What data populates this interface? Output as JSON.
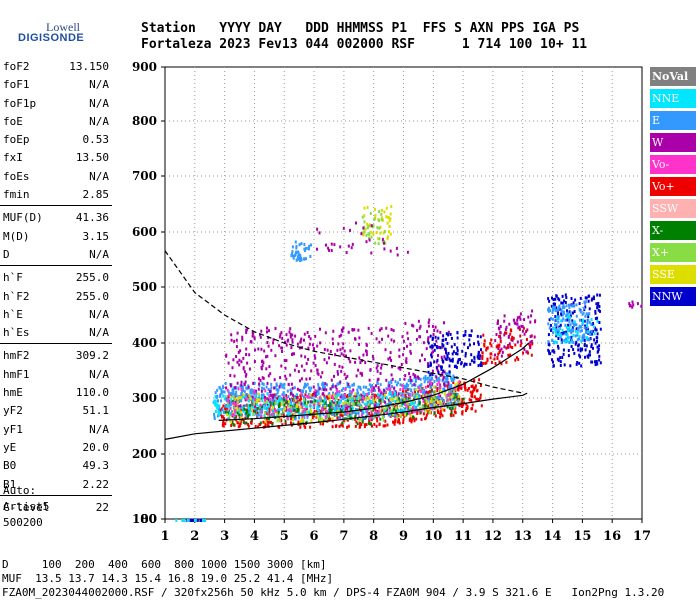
{
  "logo": {
    "line1": "Lowell",
    "line2": "DIGISONDE"
  },
  "header": {
    "row1": "Station   YYYY DAY   DDD HHMMSS P1  FFS S AXN PPS IGA PS",
    "row2": "Fortaleza 2023 Fev13 044 002000 RSF      1 714 100 10+ 11"
  },
  "params": {
    "group1": [
      {
        "name": "foF2",
        "value": "13.150"
      },
      {
        "name": "foF1",
        "value": "N/A"
      },
      {
        "name": "foF1p",
        "value": "N/A"
      },
      {
        "name": "foE",
        "value": "N/A"
      },
      {
        "name": "foEp",
        "value": "0.53"
      },
      {
        "name": "fxI",
        "value": "13.50"
      },
      {
        "name": "foEs",
        "value": "N/A"
      },
      {
        "name": "fmin",
        "value": "2.85"
      }
    ],
    "group2": [
      {
        "name": "MUF(D)",
        "value": "41.36"
      },
      {
        "name": "M(D)",
        "value": "3.15"
      },
      {
        "name": "D",
        "value": "N/A"
      }
    ],
    "group3": [
      {
        "name": "h`F",
        "value": "255.0"
      },
      {
        "name": "h`F2",
        "value": "255.0"
      },
      {
        "name": "h`E",
        "value": "N/A"
      },
      {
        "name": "h`Es",
        "value": "N/A"
      }
    ],
    "group4": [
      {
        "name": "hmF2",
        "value": "309.2"
      },
      {
        "name": "hmF1",
        "value": "N/A"
      },
      {
        "name": "hmE",
        "value": "110.0"
      },
      {
        "name": "yF2",
        "value": "51.1"
      },
      {
        "name": "yF1",
        "value": "N/A"
      },
      {
        "name": "yE",
        "value": "20.0"
      },
      {
        "name": "B0",
        "value": "49.3"
      },
      {
        "name": "B1",
        "value": "2.22"
      }
    ],
    "group5": [
      {
        "name": "C-level",
        "value": "22"
      }
    ]
  },
  "auto": {
    "line1": "Auto:",
    "line2": "Artist5",
    "line3": "500200"
  },
  "legend": [
    {
      "label": "NoVal",
      "color": "#808080"
    },
    {
      "label": "NNE",
      "color": "#00e6ff"
    },
    {
      "label": "E",
      "color": "#3399ff"
    },
    {
      "label": "W",
      "color": "#aa00aa"
    },
    {
      "label": "Vo-",
      "color": "#ff33cc"
    },
    {
      "label": "Vo+",
      "color": "#ee0000"
    },
    {
      "label": "SSW",
      "color": "#ffb0b0"
    },
    {
      "label": "X-",
      "color": "#008000"
    },
    {
      "label": "X+",
      "color": "#88dd44"
    },
    {
      "label": "SSE",
      "color": "#dddd00"
    },
    {
      "label": "NNW",
      "color": "#0000cc"
    }
  ],
  "footer": {
    "line1": "D     100  200  400  600  800 1000 1500 3000 [km]",
    "line2": "MUF  13.5 13.7 14.3 15.4 16.8 19.0 25.2 41.4 [MHz]",
    "line3": "FZA0M_2023044002000.RSF / 320fx256h 50 kHz 5.0 km / DPS-4 FZA0M 904 / 3.9 S 321.6 E   Ion2Png 1.3.20"
  },
  "chart_data": {
    "type": "scatter",
    "xlim": [
      1,
      17
    ],
    "ylim": [
      80,
      900
    ],
    "xticks": [
      1,
      2,
      3,
      4,
      5,
      6,
      7,
      8,
      9,
      10,
      11,
      12,
      13,
      14,
      15,
      16,
      17
    ],
    "yticks": [
      80,
      100,
      200,
      300,
      400,
      500,
      600,
      700,
      800,
      900
    ],
    "xlabel": "",
    "ylabel": "",
    "grid": "dotted",
    "profile_curve": {
      "lower": [
        [
          1,
          226
        ],
        [
          2,
          236
        ],
        [
          3,
          241
        ],
        [
          4,
          246
        ],
        [
          5,
          251
        ],
        [
          6,
          256
        ],
        [
          7,
          262
        ],
        [
          8,
          268
        ],
        [
          9,
          275
        ],
        [
          10,
          283
        ],
        [
          11,
          290
        ],
        [
          12,
          298
        ],
        [
          13,
          305
        ],
        [
          13.15,
          309
        ]
      ],
      "upper": [
        [
          1,
          566
        ],
        [
          2,
          490
        ],
        [
          3,
          450
        ],
        [
          4,
          420
        ],
        [
          5,
          400
        ],
        [
          6,
          385
        ],
        [
          7,
          375
        ],
        [
          8,
          365
        ],
        [
          9,
          355
        ],
        [
          10,
          345
        ],
        [
          11,
          335
        ],
        [
          12,
          320
        ],
        [
          13,
          309
        ]
      ]
    },
    "trace_curve": [
      [
        2.8,
        260
      ],
      [
        4,
        263
      ],
      [
        5,
        267
      ],
      [
        6,
        271
      ],
      [
        7,
        275
      ],
      [
        8,
        282
      ],
      [
        9,
        292
      ],
      [
        10,
        305
      ],
      [
        11,
        325
      ],
      [
        12,
        355
      ],
      [
        13,
        390
      ],
      [
        13.2,
        400
      ]
    ],
    "clusters": [
      {
        "color": "#ee0000",
        "x": [
          2.8,
          11.6
        ],
        "y": [
          250,
          310
        ],
        "n": 700
      },
      {
        "color": "#3399ff",
        "x": [
          2.6,
          10.8
        ],
        "y": [
          265,
          330
        ],
        "n": 700
      },
      {
        "color": "#aa00aa",
        "x": [
          3.0,
          10.5
        ],
        "y": [
          280,
          430
        ],
        "n": 500
      },
      {
        "color": "#00e6ff",
        "x": [
          2.6,
          9.5
        ],
        "y": [
          270,
          310
        ],
        "n": 250
      },
      {
        "color": "#008000",
        "x": [
          3.0,
          11.0
        ],
        "y": [
          255,
          300
        ],
        "n": 150
      },
      {
        "color": "#dddd00",
        "x": [
          3.0,
          11.0
        ],
        "y": [
          260,
          310
        ],
        "n": 120
      },
      {
        "color": "#88dd44",
        "x": [
          3.0,
          11.0
        ],
        "y": [
          260,
          305
        ],
        "n": 100
      },
      {
        "color": "#ff33cc",
        "x": [
          3.0,
          11.0
        ],
        "y": [
          265,
          320
        ],
        "n": 120
      },
      {
        "color": "#0000cc",
        "x": [
          9.8,
          11.6
        ],
        "y": [
          330,
          400
        ],
        "n": 120
      },
      {
        "color": "#ee0000",
        "x": [
          11.6,
          13.3
        ],
        "y": [
          330,
          390
        ],
        "n": 80
      },
      {
        "color": "#0000cc",
        "x": [
          13.8,
          15.6
        ],
        "y": [
          360,
          490
        ],
        "n": 200
      },
      {
        "color": "#3399ff",
        "x": [
          13.8,
          15.3
        ],
        "y": [
          350,
          420
        ],
        "n": 140
      },
      {
        "color": "#aa00aa",
        "x": [
          12.0,
          13.4
        ],
        "y": [
          340,
          420
        ],
        "n": 60
      },
      {
        "color": "#00e6ff",
        "x": [
          14.0,
          15.5
        ],
        "y": [
          350,
          400
        ],
        "n": 40
      },
      {
        "color": "#3399ff",
        "x": [
          5.2,
          5.9
        ],
        "y": [
          550,
          585
        ],
        "n": 40
      },
      {
        "color": "#dddd00",
        "x": [
          7.6,
          8.6
        ],
        "y": [
          590,
          650
        ],
        "n": 40
      },
      {
        "color": "#88dd44",
        "x": [
          7.6,
          8.4
        ],
        "y": [
          580,
          640
        ],
        "n": 30
      },
      {
        "color": "#aa00aa",
        "x": [
          6.0,
          9.2
        ],
        "y": [
          560,
          620
        ],
        "n": 30
      },
      {
        "color": "#0000cc",
        "x": [
          1.5,
          2.3
        ],
        "y": [
          80,
          95
        ],
        "n": 20
      },
      {
        "color": "#00e6ff",
        "x": [
          1.3,
          2.5
        ],
        "y": [
          80,
          92
        ],
        "n": 12
      },
      {
        "color": "#aa00aa",
        "x": [
          16.4,
          17
        ],
        "y": [
          395,
          415
        ],
        "n": 8
      }
    ]
  }
}
